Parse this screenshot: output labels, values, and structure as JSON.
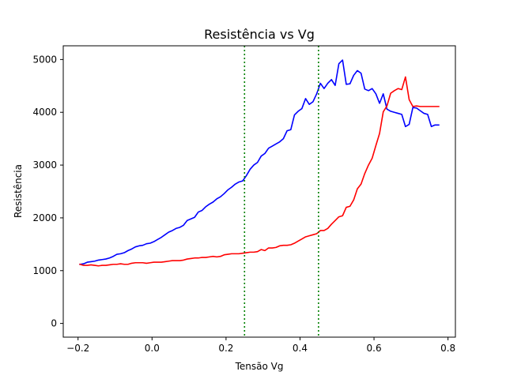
{
  "chart_data": {
    "type": "line",
    "title": "Resistência vs Vg",
    "xlabel": "Tensão Vg",
    "ylabel": "Resistência",
    "xlim": [
      -0.24,
      0.82
    ],
    "ylim": [
      -260,
      5260
    ],
    "x_ticks": [
      -0.2,
      0.0,
      0.2,
      0.4,
      0.6,
      0.8
    ],
    "x_tick_labels": [
      "−0.2",
      "0.0",
      "0.2",
      "0.4",
      "0.6",
      "0.8"
    ],
    "y_ticks": [
      0,
      1000,
      2000,
      3000,
      4000,
      5000
    ],
    "y_tick_labels": [
      "0",
      "1000",
      "2000",
      "3000",
      "4000",
      "5000"
    ],
    "grid": false,
    "colors": {
      "series_1": "#0000ff",
      "series_2": "#ff0000",
      "vlines": "#008000"
    },
    "vertical_lines": [
      {
        "x": 0.25,
        "style": "dotted",
        "color": "#008000"
      },
      {
        "x": 0.45,
        "style": "dotted",
        "color": "#008000"
      }
    ],
    "series": [
      {
        "color": "#0000ff",
        "x": [
          -0.195,
          -0.185,
          -0.175,
          -0.165,
          -0.155,
          -0.145,
          -0.135,
          -0.125,
          -0.115,
          -0.105,
          -0.095,
          -0.085,
          -0.075,
          -0.065,
          -0.055,
          -0.045,
          -0.035,
          -0.025,
          -0.015,
          -0.005,
          0.005,
          0.015,
          0.025,
          0.035,
          0.045,
          0.055,
          0.065,
          0.075,
          0.085,
          0.095,
          0.105,
          0.115,
          0.125,
          0.135,
          0.145,
          0.155,
          0.165,
          0.175,
          0.185,
          0.195,
          0.205,
          0.215,
          0.225,
          0.235,
          0.245,
          0.255,
          0.265,
          0.275,
          0.285,
          0.295,
          0.305,
          0.315,
          0.325,
          0.335,
          0.345,
          0.355,
          0.365,
          0.375,
          0.385,
          0.395,
          0.405,
          0.415,
          0.425,
          0.435,
          0.445,
          0.455,
          0.465,
          0.475,
          0.485,
          0.495,
          0.505,
          0.515,
          0.525,
          0.535,
          0.545,
          0.555,
          0.565,
          0.575,
          0.585,
          0.595,
          0.605,
          0.615,
          0.625,
          0.635,
          0.645,
          0.655,
          0.665,
          0.675,
          0.685,
          0.695,
          0.705,
          0.715,
          0.725,
          0.735,
          0.745,
          0.755,
          0.765,
          0.775
        ],
        "values": [
          1120,
          1130,
          1160,
          1170,
          1180,
          1200,
          1210,
          1220,
          1240,
          1270,
          1310,
          1320,
          1340,
          1380,
          1410,
          1450,
          1470,
          1480,
          1510,
          1520,
          1550,
          1590,
          1630,
          1680,
          1730,
          1760,
          1800,
          1820,
          1860,
          1950,
          1980,
          2010,
          2110,
          2140,
          2210,
          2260,
          2300,
          2360,
          2400,
          2460,
          2530,
          2580,
          2640,
          2680,
          2700,
          2800,
          2920,
          3000,
          3050,
          3170,
          3220,
          3320,
          3360,
          3400,
          3440,
          3500,
          3650,
          3670,
          3950,
          4020,
          4070,
          4260,
          4150,
          4200,
          4350,
          4550,
          4450,
          4550,
          4620,
          4510,
          4920,
          4990,
          4530,
          4540,
          4700,
          4790,
          4740,
          4440,
          4410,
          4450,
          4350,
          4170,
          4350,
          4060,
          4020,
          4000,
          3980,
          3960,
          3730,
          3770,
          4090,
          4080,
          4030,
          3980,
          3960,
          3730,
          3760,
          3760
        ]
      },
      {
        "color": "#ff0000",
        "x": [
          -0.195,
          -0.185,
          -0.175,
          -0.165,
          -0.155,
          -0.145,
          -0.135,
          -0.125,
          -0.115,
          -0.105,
          -0.095,
          -0.085,
          -0.075,
          -0.065,
          -0.055,
          -0.045,
          -0.035,
          -0.025,
          -0.015,
          -0.005,
          0.005,
          0.015,
          0.025,
          0.035,
          0.045,
          0.055,
          0.065,
          0.075,
          0.085,
          0.095,
          0.105,
          0.115,
          0.125,
          0.135,
          0.145,
          0.155,
          0.165,
          0.175,
          0.185,
          0.195,
          0.205,
          0.215,
          0.225,
          0.235,
          0.245,
          0.255,
          0.265,
          0.275,
          0.285,
          0.295,
          0.305,
          0.315,
          0.325,
          0.335,
          0.345,
          0.355,
          0.365,
          0.375,
          0.385,
          0.395,
          0.405,
          0.415,
          0.425,
          0.435,
          0.445,
          0.455,
          0.465,
          0.475,
          0.485,
          0.495,
          0.505,
          0.515,
          0.525,
          0.535,
          0.545,
          0.555,
          0.565,
          0.575,
          0.585,
          0.595,
          0.605,
          0.615,
          0.625,
          0.635,
          0.645,
          0.655,
          0.665,
          0.675,
          0.685,
          0.695,
          0.705,
          0.715,
          0.725,
          0.735,
          0.745,
          0.755,
          0.765,
          0.775
        ],
        "values": [
          1120,
          1100,
          1100,
          1110,
          1100,
          1090,
          1100,
          1100,
          1110,
          1120,
          1120,
          1130,
          1120,
          1120,
          1140,
          1150,
          1150,
          1150,
          1140,
          1150,
          1160,
          1160,
          1160,
          1170,
          1180,
          1190,
          1190,
          1190,
          1200,
          1220,
          1230,
          1240,
          1240,
          1250,
          1250,
          1260,
          1270,
          1260,
          1270,
          1300,
          1310,
          1320,
          1320,
          1320,
          1330,
          1340,
          1350,
          1350,
          1360,
          1400,
          1380,
          1430,
          1430,
          1440,
          1470,
          1480,
          1480,
          1490,
          1520,
          1560,
          1600,
          1640,
          1660,
          1680,
          1700,
          1760,
          1760,
          1800,
          1880,
          1950,
          2020,
          2040,
          2200,
          2220,
          2340,
          2550,
          2640,
          2840,
          3000,
          3130,
          3370,
          3600,
          4010,
          4120,
          4360,
          4410,
          4450,
          4430,
          4670,
          4240,
          4110,
          4120,
          4110,
          4110,
          4110,
          4110,
          4110,
          4110
        ]
      }
    ]
  }
}
